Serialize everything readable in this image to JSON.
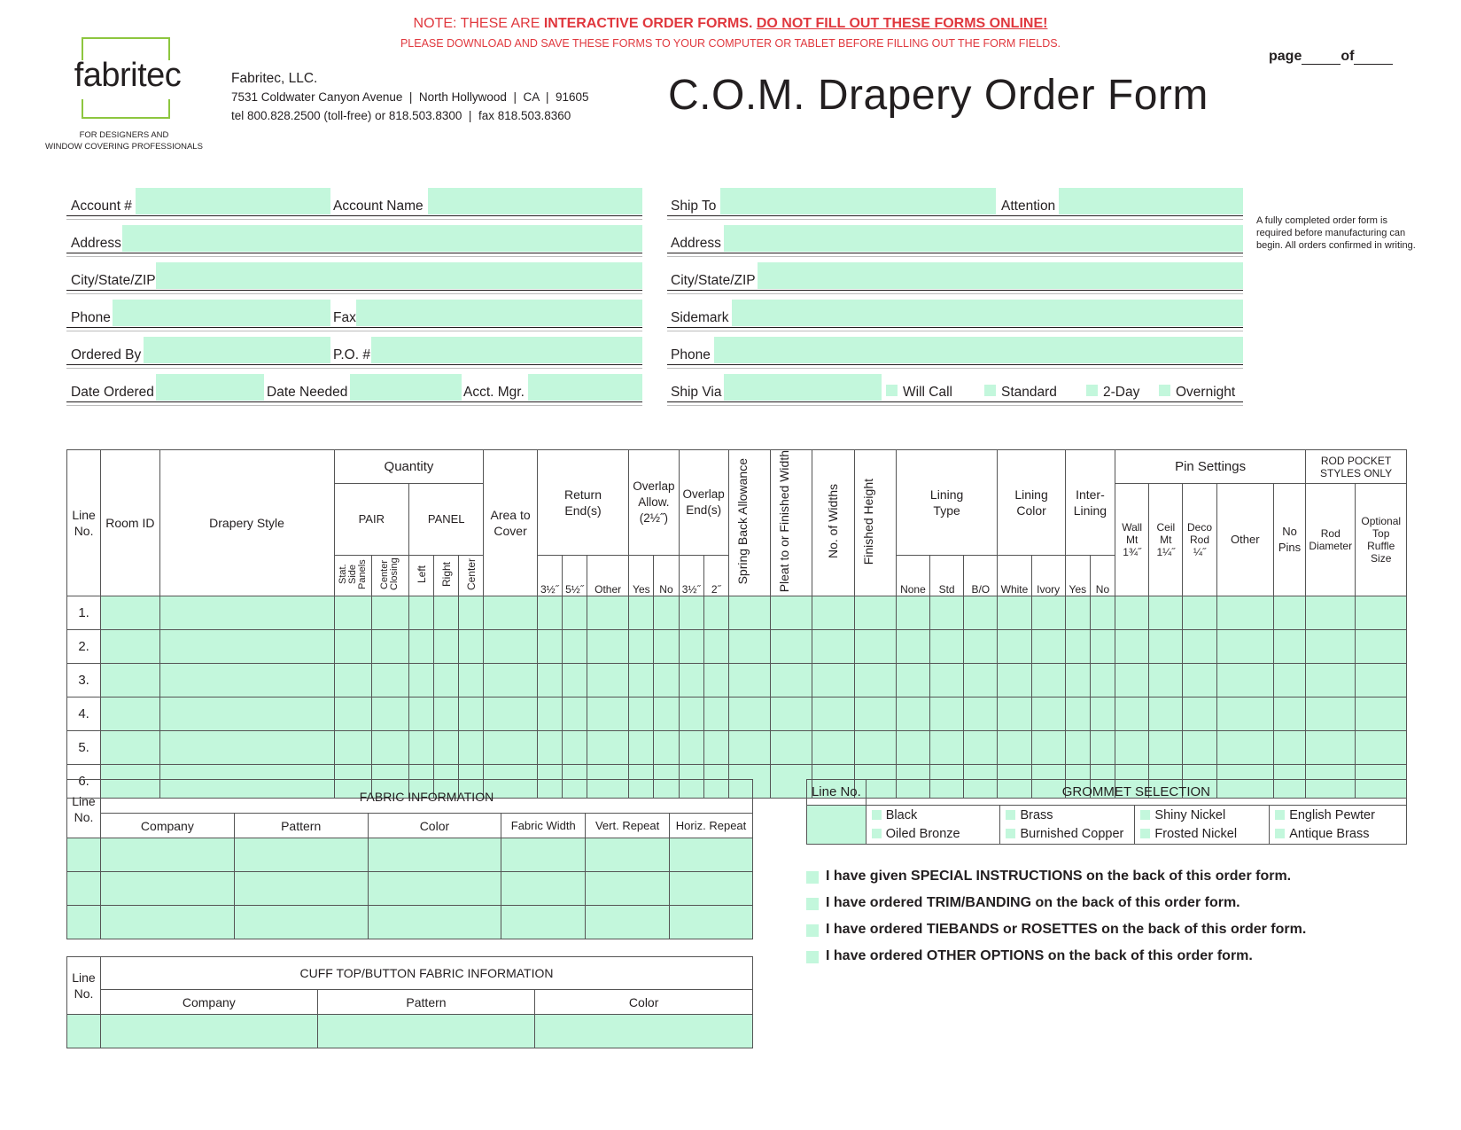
{
  "notice": {
    "line1_prefix": "NOTE: THESE ARE ",
    "line1_bold": "INTERACTIVE ORDER FORMS.",
    "line1_underlined": "DO NOT FILL OUT THESE FORMS ONLINE!",
    "line2": "PLEASE DOWNLOAD AND SAVE THESE FORMS TO YOUR COMPUTER OR TABLET BEFORE FILLING OUT THE FORM FIELDS."
  },
  "logo": {
    "name": "fabritec",
    "tagline1": "FOR DESIGNERS AND",
    "tagline2": "WINDOW COVERING PROFESSIONALS"
  },
  "company": {
    "name": "Fabritec, LLC.",
    "address": "7531 Coldwater Canyon Avenue  |  North Hollywood  |  CA  |  91605",
    "contact": "tel 800.828.2500 (toll-free) or 818.503.8300  |  fax 818.503.8360"
  },
  "title": "C.O.M. Drapery Order Form",
  "page_label": "page",
  "of_label": "of",
  "side_note": "A fully completed order form is required before manufacturing can begin. All orders confirmed in writing.",
  "left_fields": {
    "account_no": "Account #",
    "account_name": "Account Name",
    "address": "Address",
    "city_state_zip": "City/State/ZIP",
    "phone": "Phone",
    "fax": "Fax",
    "ordered_by": "Ordered By",
    "po_no": "P.O. #",
    "date_ordered": "Date Ordered",
    "date_needed": "Date Needed",
    "acct_mgr": "Acct. Mgr."
  },
  "right_fields": {
    "ship_to": "Ship To",
    "attention": "Attention",
    "address": "Address",
    "city_state_zip": "City/State/ZIP",
    "sidemark": "Sidemark",
    "phone": "Phone",
    "ship_via": "Ship Via",
    "will_call": "Will Call",
    "standard": "Standard",
    "two_day": "2-Day",
    "overnight": "Overnight"
  },
  "main_table": {
    "line_no": "Line No.",
    "room_id": "Room ID",
    "drapery_style": "Drapery Style",
    "quantity": "Quantity",
    "pair": "PAIR",
    "panel": "PANEL",
    "stat_side_panels": "Stat. Side Panels",
    "center_closing": "Center Closing",
    "left": "Left",
    "right": "Right",
    "center": "Center",
    "area_to_cover": "Area to Cover",
    "return_ends": "Return End(s)",
    "ret_35": "3½˝",
    "ret_55": "5½˝",
    "ret_other": "Other",
    "overlap_allow": "Overlap Allow. (2½˝)",
    "yes": "Yes",
    "no": "No",
    "overlap_ends": "Overlap End(s)",
    "ov_35": "3½˝",
    "ov_2": "2˝",
    "spring_back": "Spring Back Allowance",
    "pleat_to": "Pleat to or Finished Width",
    "no_widths": "No. of Widths",
    "finished_height": "Finished Height",
    "lining_type": "Lining Type",
    "none": "None",
    "std": "Std",
    "bo": "B/O",
    "lining_color": "Lining Color",
    "white": "White",
    "ivory": "Ivory",
    "interlining": "Inter- Lining",
    "pin_settings": "Pin Settings",
    "wall_mt": "Wall Mt 1¾˝",
    "ceil_mt": "Ceil Mt 1¼˝",
    "deco_rod": "Deco Rod ¼˝",
    "pin_other": "Other",
    "no_pins": "No Pins",
    "rod_pocket": "ROD POCKET STYLES ONLY",
    "rod_diameter": "Rod Diameter",
    "optional_top": "Optional Top Ruffle Size",
    "rows": [
      "1.",
      "2.",
      "3.",
      "4.",
      "5.",
      "6."
    ]
  },
  "fabric_table": {
    "line_no": "Line No.",
    "title": "FABRIC INFORMATION",
    "company": "Company",
    "pattern": "Pattern",
    "color": "Color",
    "fabric_width": "Fabric Width",
    "vert_repeat": "Vert. Repeat",
    "horiz_repeat": "Horiz. Repeat"
  },
  "cuff_table": {
    "line_no": "Line No.",
    "title": "CUFF TOP/BUTTON FABRIC INFORMATION",
    "company": "Company",
    "pattern": "Pattern",
    "color": "Color"
  },
  "grommet_table": {
    "line_no": "Line No.",
    "title": "GROMMET SELECTION",
    "options": [
      "Black",
      "Brass",
      "Shiny Nickel",
      "English Pewter",
      "Oiled Bronze",
      "Burnished Copper",
      "Frosted Nickel",
      "Antique Brass"
    ]
  },
  "checkboxes": [
    "I have given SPECIAL INSTRUCTIONS on the back of this order form.",
    "I have ordered TRIM/BANDING on the back of this order form.",
    "I have ordered TIEBANDS or ROSETTES on the back of this order form.",
    "I have ordered OTHER OPTIONS on the back of this order form."
  ],
  "colors": {
    "notice_red": "#e0383e",
    "logo_green": "#8dc63f",
    "field_fill": "#c3f7dc"
  }
}
